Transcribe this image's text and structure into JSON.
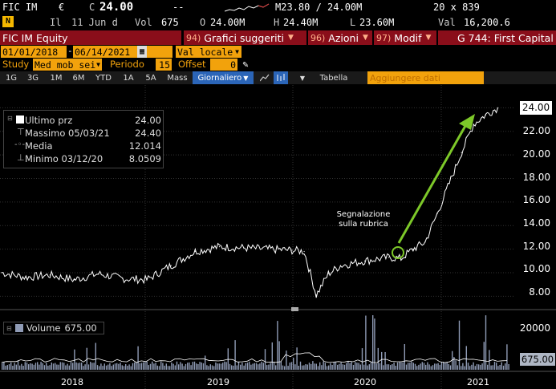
{
  "quote": {
    "ticker": "FIC IM",
    "currency": "€",
    "price_flag": "C",
    "last": "24.00",
    "change": "--",
    "date_label": "Il",
    "date": "11 Jun d",
    "vol_label": "Vol",
    "vol": "675",
    "open_flag": "O",
    "open": "24.00M",
    "high_flag": "H",
    "high": "24.40M",
    "low_flag": "L",
    "low": "23.60M",
    "val_label": "Val",
    "val": "16,200.6",
    "bid_ask": "M23.80 / 24.00M",
    "size": "20 x 839",
    "news_badge": "N"
  },
  "title_bar": {
    "security": "FIC IM Equity",
    "btn1_num": "94)",
    "btn1": "Grafici suggeriti",
    "btn2_num": "96)",
    "btn2": "Azioni",
    "btn3_num": "97)",
    "btn3": "Modif",
    "page": "G 744: First Capital"
  },
  "controls": {
    "start_date": "01/01/2018",
    "end_date": "06/14/2021",
    "currency_sel": "Val locale",
    "study_label": "Study",
    "study_value": "Med mob sei",
    "period_label": "Periodo",
    "period_value": "15",
    "offset_label": "Offset",
    "offset_value": "0"
  },
  "toolbar": {
    "ranges": [
      "1G",
      "3G",
      "1M",
      "6M",
      "YTD",
      "1A",
      "5A",
      "Mass"
    ],
    "frequency": "Giornaliero",
    "table": "Tabella",
    "add_data": "Aggiungere dati"
  },
  "legend": {
    "items": [
      {
        "name": "Ultimo prz",
        "value": "24.00"
      },
      {
        "name": "Massimo 05/03/21",
        "value": "24.40"
      },
      {
        "name": "Media",
        "value": "12.014"
      },
      {
        "name": "Minimo 03/12/20",
        "value": "8.0509"
      }
    ],
    "volume_name": "Volume",
    "volume_value": "675.00"
  },
  "annotation": {
    "line1": "Segnalazione",
    "line2": "sulla rubrica"
  },
  "chart_data": [
    {
      "type": "line",
      "title": "",
      "x": [
        "2018-01",
        "2018-03",
        "2018-05",
        "2018-07",
        "2018-09",
        "2018-11",
        "2019-01",
        "2019-03",
        "2019-05",
        "2019-07",
        "2019-09",
        "2019-11",
        "2020-01",
        "2020-02",
        "2020-03",
        "2020-04",
        "2020-05",
        "2020-07",
        "2020-09",
        "2020-10",
        "2020-11",
        "2020-12",
        "2021-01",
        "2021-02",
        "2021-03",
        "2021-04",
        "2021-05",
        "2021-06"
      ],
      "series": [
        {
          "name": "Ultimo prz",
          "values": [
            10.0,
            9.6,
            9.8,
            9.4,
            9.9,
            9.5,
            9.4,
            10.6,
            11.8,
            12.2,
            12.1,
            12.0,
            11.9,
            11.8,
            8.1,
            9.9,
            10.6,
            11.0,
            11.3,
            11.2,
            12.0,
            12.6,
            15.0,
            17.6,
            20.2,
            22.6,
            23.4,
            24.0
          ]
        }
      ],
      "ylim": [
        7,
        24.5
      ],
      "yticks": [
        "24.00",
        "22.00",
        "20.00",
        "18.00",
        "16.00",
        "14.00",
        "12.00",
        "10.00",
        "8.00"
      ],
      "xlabels": [
        "2018",
        "2019",
        "2020",
        "2021"
      ],
      "last_value_label": "24.00",
      "grid": true,
      "legend": "top-left"
    },
    {
      "type": "bar",
      "title": "",
      "x": [
        "2018",
        "2019",
        "2020",
        "2021"
      ],
      "series": [
        {
          "name": "Volume",
          "values": [
            3000,
            3500,
            9000,
            6000
          ]
        }
      ],
      "peak": 23000,
      "yticks": [
        "20000",
        "675.00"
      ],
      "last_value_label": "675.00"
    }
  ]
}
